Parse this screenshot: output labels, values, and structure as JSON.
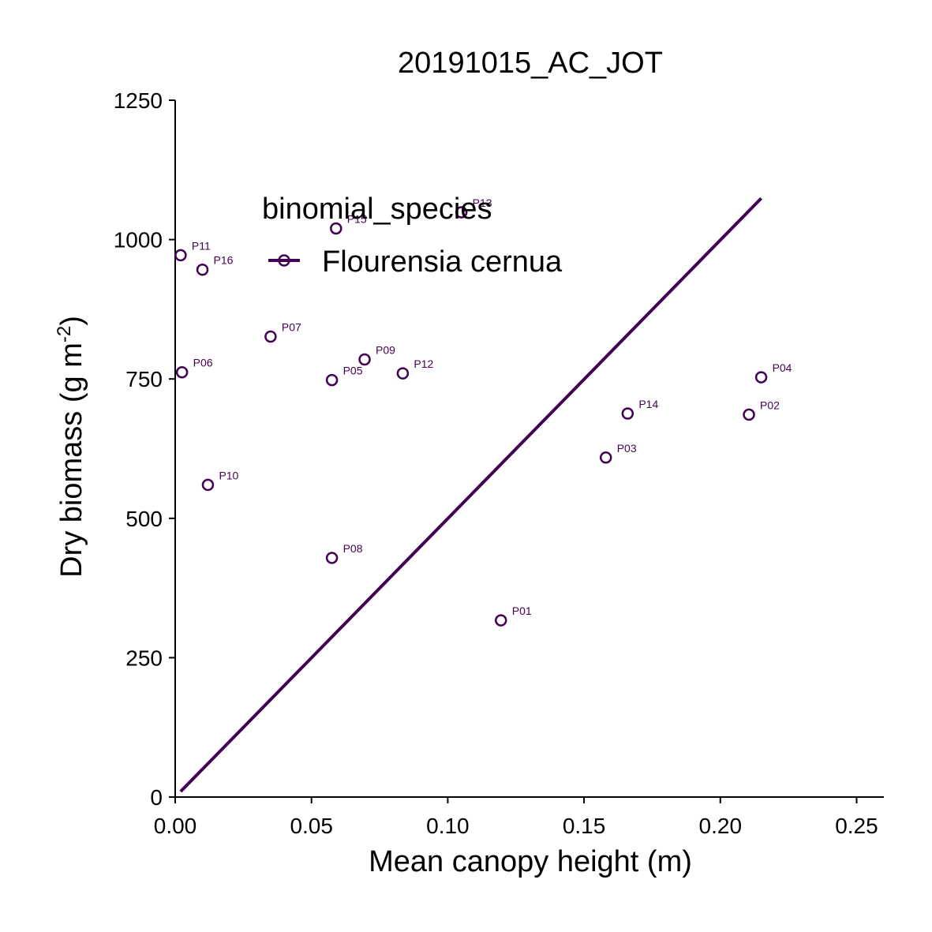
{
  "chart_data": {
    "type": "scatter",
    "title": "20191015_AC_JOT",
    "xlabel": "Mean canopy height (m)",
    "ylabel_main": "Dry biomass (g m",
    "ylabel_sup": "-2",
    "ylabel_close": ")",
    "xlim": [
      0,
      0.26
    ],
    "ylim": [
      0,
      1250
    ],
    "x_ticks": [
      0,
      0.05,
      0.1,
      0.15,
      0.2,
      0.25
    ],
    "x_tick_labels": [
      "0.00",
      "0.05",
      "0.10",
      "0.15",
      "0.20",
      "0.25"
    ],
    "y_ticks": [
      0,
      250,
      500,
      750,
      1000,
      1250
    ],
    "y_tick_labels": [
      "0",
      "250",
      "500",
      "750",
      "1000",
      "1250"
    ],
    "grid": false,
    "legend": {
      "position": "top-center",
      "title": "binomial_species",
      "entries": [
        "Flourensia cernua"
      ]
    },
    "series": [
      {
        "name": "Flourensia cernua",
        "color": "#440154",
        "points": [
          {
            "label": "P01",
            "x": 0.1195,
            "y": 317
          },
          {
            "label": "P02",
            "x": 0.2105,
            "y": 686
          },
          {
            "label": "P03",
            "x": 0.158,
            "y": 609
          },
          {
            "label": "P04",
            "x": 0.215,
            "y": 753
          },
          {
            "label": "P05",
            "x": 0.0575,
            "y": 748
          },
          {
            "label": "P06",
            "x": 0.0025,
            "y": 762
          },
          {
            "label": "P07",
            "x": 0.035,
            "y": 826
          },
          {
            "label": "P08",
            "x": 0.0575,
            "y": 429
          },
          {
            "label": "P09",
            "x": 0.0695,
            "y": 785
          },
          {
            "label": "P10",
            "x": 0.012,
            "y": 560
          },
          {
            "label": "P11",
            "x": 0.002,
            "y": 972
          },
          {
            "label": "P12",
            "x": 0.0835,
            "y": 760
          },
          {
            "label": "P13",
            "x": 0.105,
            "y": 1049
          },
          {
            "label": "P14",
            "x": 0.166,
            "y": 688
          },
          {
            "label": "P15",
            "x": 0.059,
            "y": 1020
          },
          {
            "label": "P16",
            "x": 0.01,
            "y": 946
          }
        ],
        "fit_line": {
          "x": [
            0.002,
            0.215
          ],
          "y": [
            10,
            1074
          ]
        }
      }
    ]
  }
}
